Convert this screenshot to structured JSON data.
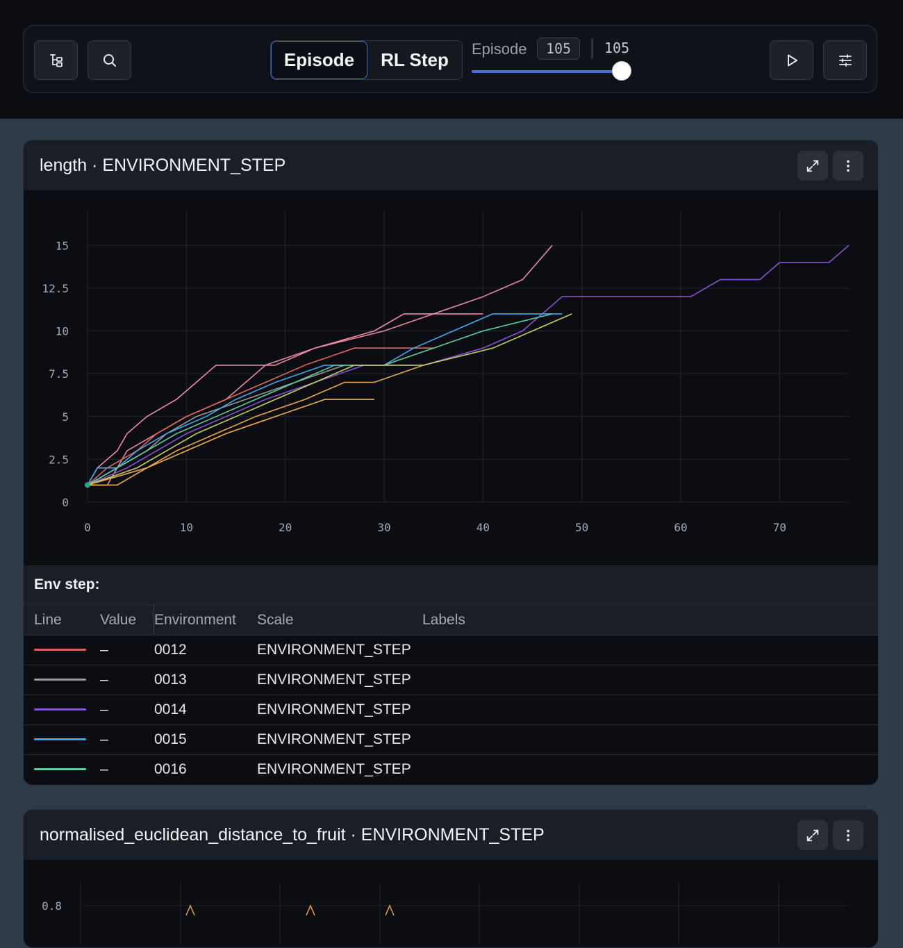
{
  "toolbar": {
    "tabs": [
      {
        "label": "Episode",
        "active": true
      },
      {
        "label": "RL Step",
        "active": false
      }
    ],
    "episode_label": "Episode",
    "episode_value": "105",
    "episode_max": "105",
    "slider_fraction": 1.0,
    "accent_color": "#4a6fe0"
  },
  "panels": [
    {
      "title": "length · ENVIRONMENT_STEP",
      "legend": {
        "title": "Env step:",
        "columns": [
          "Line",
          "Value",
          "Environment",
          "Scale",
          "Labels"
        ],
        "rows": [
          {
            "color": "#e0685a",
            "value": "–",
            "environment": "0012",
            "scale": "ENVIRONMENT_STEP",
            "labels": ""
          },
          {
            "color": "#9a9a9a",
            "value": "–",
            "environment": "0013",
            "scale": "ENVIRONMENT_STEP",
            "labels": ""
          },
          {
            "color": "#8a52d6",
            "value": "–",
            "environment": "0014",
            "scale": "ENVIRONMENT_STEP",
            "labels": ""
          },
          {
            "color": "#3fa9f0",
            "value": "–",
            "environment": "0015",
            "scale": "ENVIRONMENT_STEP",
            "labels": ""
          },
          {
            "color": "#5fd0a0",
            "value": "–",
            "environment": "0016",
            "scale": "ENVIRONMENT_STEP",
            "labels": ""
          }
        ]
      }
    },
    {
      "title": "normalised_euclidean_distance_to_fruit · ENVIRONMENT_STEP"
    }
  ],
  "chart_data": [
    {
      "type": "line",
      "title": "length · ENVIRONMENT_STEP",
      "xlabel": "",
      "ylabel": "",
      "xlim": [
        0,
        77
      ],
      "ylim": [
        0,
        17
      ],
      "x_ticks": [
        "0",
        "10",
        "20",
        "30",
        "40",
        "50",
        "60",
        "70"
      ],
      "y_ticks": [
        "0",
        "2.5",
        "5",
        "7.5",
        "10",
        "12.5",
        "15"
      ],
      "grid": true,
      "series": [
        {
          "color": "#e8899e",
          "points": [
            [
              0,
              1
            ],
            [
              2,
              1
            ],
            [
              4,
              3
            ],
            [
              7,
              4
            ],
            [
              10,
              5
            ],
            [
              14,
              6
            ],
            [
              16,
              7
            ],
            [
              18,
              8
            ],
            [
              23,
              9
            ],
            [
              30,
              10
            ],
            [
              35,
              11
            ],
            [
              40,
              12
            ],
            [
              44,
              13
            ],
            [
              47,
              15
            ]
          ]
        },
        {
          "color": "#ee8aa6",
          "points": [
            [
              0,
              1
            ],
            [
              1,
              2
            ],
            [
              3,
              3
            ],
            [
              4,
              4
            ],
            [
              6,
              5
            ],
            [
              9,
              6
            ],
            [
              11,
              7
            ],
            [
              13,
              8
            ],
            [
              19,
              8
            ],
            [
              23,
              9
            ],
            [
              29,
              10
            ],
            [
              32,
              11
            ],
            [
              40,
              11
            ]
          ]
        },
        {
          "color": "#e0685a",
          "points": [
            [
              0,
              1
            ],
            [
              2,
              2
            ],
            [
              5,
              3
            ],
            [
              7,
              4
            ],
            [
              10,
              5
            ],
            [
              14,
              6
            ],
            [
              18,
              7
            ],
            [
              22,
              8
            ],
            [
              27,
              9
            ],
            [
              35,
              9
            ]
          ]
        },
        {
          "color": "#9a9a9a",
          "points": [
            [
              0,
              1
            ],
            [
              3,
              2
            ],
            [
              6,
              3
            ],
            [
              8,
              4
            ],
            [
              11,
              5
            ],
            [
              16,
              6
            ],
            [
              21,
              7
            ],
            [
              26,
              8
            ],
            [
              31,
              8
            ]
          ]
        },
        {
          "color": "#8a52d6",
          "points": [
            [
              0,
              1
            ],
            [
              4,
              2
            ],
            [
              7,
              3
            ],
            [
              10,
              4
            ],
            [
              14,
              5
            ],
            [
              18,
              6
            ],
            [
              23,
              7
            ],
            [
              28,
              8
            ],
            [
              34,
              8
            ],
            [
              40,
              9
            ],
            [
              44,
              10
            ],
            [
              48,
              12
            ],
            [
              61,
              12
            ],
            [
              64,
              13
            ],
            [
              68,
              13
            ],
            [
              70,
              14
            ],
            [
              75,
              14
            ],
            [
              77,
              15
            ]
          ]
        },
        {
          "color": "#3fa9f0",
          "points": [
            [
              0,
              1
            ],
            [
              1,
              2
            ],
            [
              3,
              2
            ],
            [
              5,
              3
            ],
            [
              8,
              4
            ],
            [
              12,
              5
            ],
            [
              15,
              6
            ],
            [
              19,
              7
            ],
            [
              24,
              8
            ],
            [
              30,
              8
            ],
            [
              33,
              9
            ],
            [
              37,
              10
            ],
            [
              41,
              11
            ],
            [
              48,
              11
            ]
          ]
        },
        {
          "color": "#5fd0a0",
          "points": [
            [
              0,
              1
            ],
            [
              3,
              2
            ],
            [
              6,
              3
            ],
            [
              9,
              4
            ],
            [
              13,
              5
            ],
            [
              17,
              6
            ],
            [
              21,
              7
            ],
            [
              25,
              8
            ],
            [
              30,
              8
            ],
            [
              35,
              9
            ],
            [
              40,
              10
            ],
            [
              47,
              11
            ]
          ]
        },
        {
          "color": "#c6d35a",
          "points": [
            [
              0,
              1
            ],
            [
              5,
              2
            ],
            [
              8,
              3
            ],
            [
              11,
              4
            ],
            [
              15,
              5
            ],
            [
              19,
              6
            ],
            [
              23,
              7
            ],
            [
              27,
              8
            ],
            [
              34,
              8
            ],
            [
              41,
              9
            ],
            [
              45,
              10
            ],
            [
              49,
              11
            ]
          ]
        },
        {
          "color": "#e6a84a",
          "points": [
            [
              0,
              1
            ],
            [
              6,
              2
            ],
            [
              9,
              3
            ],
            [
              13,
              4
            ],
            [
              17,
              5
            ],
            [
              22,
              6
            ],
            [
              26,
              7
            ],
            [
              29,
              7
            ],
            [
              34,
              8
            ]
          ]
        },
        {
          "color": "#f0b04a",
          "points": [
            [
              0,
              1
            ],
            [
              3,
              1
            ],
            [
              6,
              2
            ],
            [
              10,
              3
            ],
            [
              14,
              4
            ],
            [
              19,
              5
            ],
            [
              24,
              6
            ],
            [
              29,
              6
            ]
          ]
        }
      ]
    }
  ]
}
